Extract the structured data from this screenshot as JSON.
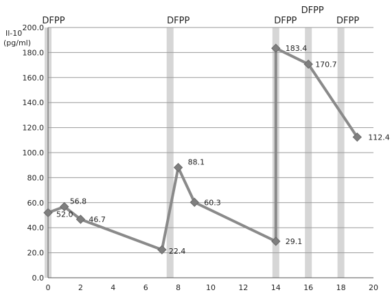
{
  "chart_data": {
    "type": "line",
    "ylabel_lines": [
      "Il-10",
      "(pg/ml)"
    ],
    "xlim": [
      0,
      20
    ],
    "ylim": [
      0,
      200
    ],
    "x_ticks": [
      0,
      2,
      4,
      6,
      8,
      10,
      12,
      14,
      16,
      18,
      20
    ],
    "y_ticks": [
      "0.0",
      "20.0",
      "40.0",
      "60.0",
      "80.0",
      "100.0",
      "120.0",
      "140.0",
      "160.0",
      "180.0",
      "200.0"
    ],
    "grid": "horizontal",
    "series": [
      {
        "color": "#8a8a8a",
        "points": [
          {
            "x": 0,
            "y": 52.0,
            "label": "52.0"
          },
          {
            "x": 1,
            "y": 56.8,
            "label": "56.8"
          },
          {
            "x": 2,
            "y": 46.7,
            "label": "46.7"
          },
          {
            "x": 7,
            "y": 22.4,
            "label": "22.4"
          },
          {
            "x": 8,
            "y": 88.1,
            "label": "88.1"
          },
          {
            "x": 9,
            "y": 60.3,
            "label": "60.3"
          },
          {
            "x": 14,
            "y": 29.1,
            "label": "29.1"
          },
          {
            "x": 14,
            "y": 183.4,
            "label": "183.4"
          },
          {
            "x": 16,
            "y": 170.7,
            "label": "170.7"
          },
          {
            "x": 19,
            "y": 112.4,
            "label": "112.4"
          }
        ]
      }
    ],
    "treatment_markers": [
      {
        "x": 0,
        "label": "DFPP"
      },
      {
        "x": 7.5,
        "label": "DFPP"
      },
      {
        "x": 14,
        "label": "DFPP"
      },
      {
        "x": 16,
        "label": "DFPP"
      },
      {
        "x": 18,
        "label": "DFPP"
      }
    ],
    "colors": {
      "line": "#8a8a8a",
      "marker": "#7f7f7f",
      "band": "#c8c8c8",
      "grid": "#9a9a9a"
    }
  }
}
